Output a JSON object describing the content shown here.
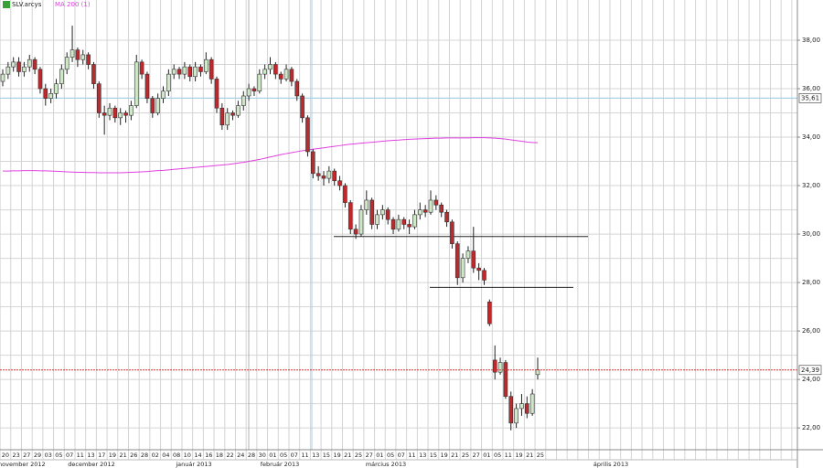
{
  "chart_data": {
    "type": "candlestick",
    "symbol": "SLV.arcys",
    "indicator": "MA 200 (1)",
    "categories": [
      "20",
      null,
      "23",
      null,
      "27",
      null,
      "29",
      null,
      "03",
      null,
      "05",
      null,
      "07",
      null,
      "11",
      null,
      "13",
      null,
      "17",
      null,
      "19",
      null,
      "21",
      null,
      "26",
      null,
      "28",
      null,
      "02",
      null,
      "04",
      null,
      "08",
      null,
      "10",
      null,
      "14",
      null,
      "16",
      null,
      "18",
      null,
      "22",
      null,
      "24",
      null,
      "28",
      null,
      "30",
      null,
      "01",
      null,
      "05",
      null,
      "07",
      null,
      "11",
      null,
      "13",
      null,
      "15",
      null,
      "19",
      null,
      "21",
      null,
      "25",
      null,
      "27",
      null,
      "01",
      null,
      "05",
      null,
      "07",
      null,
      "11",
      null,
      "13",
      null,
      "15",
      null,
      "19",
      null,
      "21",
      null,
      "25",
      null,
      "27",
      null,
      "01",
      null,
      "05",
      null,
      "11",
      null,
      "19",
      null,
      "21",
      null,
      "25"
    ],
    "month_labels": [
      "november 2012",
      "december 2012",
      "január 2013",
      "február 2013",
      "március 2013",
      "április 2013"
    ],
    "open": [
      36.3,
      36.6,
      36.9,
      37.1,
      36.7,
      36.9,
      37.2,
      36.8,
      36.0,
      35.6,
      35.8,
      36.2,
      36.8,
      37.3,
      37.6,
      37.2,
      37.4,
      37.0,
      36.2,
      35.0,
      34.9,
      35.2,
      34.8,
      35.0,
      34.9,
      35.3,
      37.1,
      36.6,
      35.6,
      35.0,
      35.6,
      35.9,
      36.6,
      36.8,
      36.6,
      36.9,
      36.5,
      36.9,
      36.7,
      37.2,
      36.4,
      35.2,
      34.5,
      35.0,
      34.9,
      35.3,
      35.7,
      36.0,
      35.9,
      36.6,
      36.8,
      37.0,
      36.6,
      36.4,
      36.8,
      36.3,
      35.7,
      34.8,
      33.4,
      32.5,
      32.4,
      32.3,
      32.6,
      32.2,
      32.0,
      31.3,
      30.2,
      30.0,
      31.0,
      31.4,
      30.4,
      30.8,
      31.0,
      30.6,
      30.2,
      30.6,
      30.4,
      30.3,
      30.8,
      31.0,
      30.9,
      31.4,
      31.2,
      30.9,
      30.5,
      29.6,
      28.2,
      29.0,
      29.3,
      28.6,
      28.5,
      27.2,
      24.8,
      24.3,
      24.7,
      23.3,
      22.2,
      22.8,
      23.0,
      22.6,
      24.2
    ],
    "high": [
      36.8,
      37.1,
      37.3,
      37.3,
      37.1,
      37.4,
      37.3,
      36.9,
      36.2,
      36.0,
      36.4,
      37.0,
      37.5,
      38.6,
      37.7,
      37.6,
      37.5,
      37.1,
      36.3,
      35.3,
      35.4,
      35.3,
      35.2,
      35.1,
      35.5,
      37.4,
      37.2,
      36.7,
      35.7,
      35.8,
      36.1,
      36.8,
      37.0,
      36.9,
      37.1,
      37.0,
      37.1,
      37.0,
      37.5,
      37.3,
      36.5,
      35.4,
      35.2,
      35.1,
      35.5,
      35.9,
      36.2,
      36.1,
      36.8,
      37.0,
      37.3,
      37.1,
      36.7,
      37.0,
      36.9,
      36.4,
      35.8,
      34.9,
      33.5,
      32.8,
      32.6,
      32.8,
      32.7,
      32.4,
      32.1,
      31.4,
      30.4,
      31.2,
      31.8,
      31.5,
      31.0,
      31.2,
      31.1,
      30.7,
      30.8,
      30.7,
      30.6,
      31.0,
      31.3,
      31.2,
      31.8,
      31.6,
      31.3,
      31.0,
      30.6,
      29.7,
      29.2,
      29.5,
      30.3,
      28.8,
      28.6,
      27.3,
      25.4,
      24.9,
      24.8,
      23.5,
      23.0,
      23.4,
      23.3,
      23.6,
      24.9
    ],
    "low": [
      36.1,
      36.4,
      36.7,
      36.5,
      36.5,
      36.7,
      36.6,
      35.8,
      35.3,
      35.4,
      35.6,
      36.0,
      36.6,
      37.1,
      36.9,
      37.0,
      36.8,
      36.0,
      34.8,
      34.1,
      34.7,
      34.6,
      34.5,
      34.6,
      34.7,
      35.2,
      36.4,
      35.4,
      34.8,
      34.9,
      35.4,
      35.7,
      36.4,
      36.4,
      36.4,
      36.3,
      36.3,
      36.5,
      36.6,
      36.2,
      35.0,
      34.3,
      34.3,
      34.7,
      34.8,
      35.1,
      35.5,
      35.7,
      35.8,
      36.4,
      36.6,
      36.4,
      36.2,
      36.3,
      36.1,
      35.5,
      34.6,
      33.2,
      32.3,
      32.2,
      32.0,
      32.1,
      32.0,
      31.8,
      31.1,
      30.0,
      29.8,
      29.9,
      30.8,
      30.2,
      30.2,
      30.6,
      30.4,
      30.0,
      30.1,
      30.2,
      30.0,
      30.2,
      30.6,
      30.7,
      30.8,
      31.0,
      30.7,
      30.3,
      29.4,
      27.9,
      28.0,
      28.8,
      28.4,
      28.1,
      27.9,
      26.2,
      24.0,
      24.2,
      23.2,
      21.9,
      22.0,
      22.5,
      22.4,
      22.5,
      24.0
    ],
    "close": [
      36.6,
      36.9,
      37.1,
      36.7,
      36.9,
      37.2,
      36.8,
      36.0,
      35.6,
      35.8,
      36.2,
      36.8,
      37.3,
      37.6,
      37.2,
      37.4,
      37.0,
      36.2,
      35.0,
      34.9,
      35.2,
      34.8,
      35.0,
      34.9,
      35.3,
      37.1,
      36.6,
      35.6,
      35.0,
      35.6,
      35.9,
      36.6,
      36.8,
      36.6,
      36.9,
      36.5,
      36.9,
      36.7,
      37.2,
      36.4,
      35.2,
      34.5,
      35.0,
      34.9,
      35.3,
      35.7,
      36.0,
      35.9,
      36.6,
      36.8,
      37.0,
      36.6,
      36.4,
      36.8,
      36.3,
      35.7,
      34.8,
      33.4,
      32.5,
      32.4,
      32.3,
      32.6,
      32.2,
      32.0,
      31.3,
      30.2,
      30.0,
      31.0,
      31.4,
      30.4,
      30.8,
      31.0,
      30.6,
      30.2,
      30.6,
      30.4,
      30.3,
      30.8,
      31.0,
      30.9,
      31.4,
      31.2,
      30.9,
      30.5,
      29.6,
      28.2,
      29.0,
      29.3,
      28.6,
      28.5,
      28.1,
      26.3,
      24.3,
      24.7,
      23.3,
      22.2,
      22.8,
      23.0,
      22.6,
      23.4,
      24.4
    ],
    "ma200": [
      32.6,
      32.6,
      32.61,
      32.61,
      32.62,
      32.62,
      32.62,
      32.61,
      32.61,
      32.6,
      32.59,
      32.58,
      32.57,
      32.56,
      32.55,
      32.55,
      32.54,
      32.54,
      32.53,
      32.53,
      32.53,
      32.53,
      32.53,
      32.54,
      32.55,
      32.56,
      32.57,
      32.58,
      32.6,
      32.62,
      32.63,
      32.65,
      32.67,
      32.69,
      32.71,
      32.73,
      32.75,
      32.77,
      32.79,
      32.81,
      32.83,
      32.85,
      32.87,
      32.9,
      32.93,
      32.96,
      33.0,
      33.04,
      33.08,
      33.13,
      33.18,
      33.23,
      33.28,
      33.32,
      33.36,
      33.4,
      33.44,
      33.47,
      33.5,
      33.53,
      33.56,
      33.59,
      33.62,
      33.65,
      33.68,
      33.71,
      33.73,
      33.75,
      33.77,
      33.79,
      33.81,
      33.83,
      33.85,
      33.87,
      33.88,
      33.9,
      33.91,
      33.92,
      33.93,
      33.94,
      33.95,
      33.96,
      33.96,
      33.97,
      33.97,
      33.97,
      33.97,
      33.97,
      33.98,
      33.98,
      33.98,
      33.97,
      33.96,
      33.94,
      33.92,
      33.89,
      33.86,
      33.83,
      33.8,
      33.78,
      33.77
    ],
    "ma_color": "#e040e0",
    "up_color": "#cfe8c8",
    "down_color": "#c0282c",
    "ylim": [
      21.1,
      39.66
    ],
    "yticks": [
      {
        "value": 22,
        "label": "22,00"
      },
      {
        "value": 24,
        "label": "24,00"
      },
      {
        "value": 26,
        "label": "26,00"
      },
      {
        "value": 28,
        "label": "28,00"
      },
      {
        "value": 30,
        "label": "30,00"
      },
      {
        "value": 32,
        "label": "32,00"
      },
      {
        "value": 34,
        "label": "34,00"
      },
      {
        "value": 36,
        "label": "36,00"
      },
      {
        "value": 38,
        "label": "38,00"
      }
    ],
    "reference_line": {
      "value": 35.61,
      "label": "35,61",
      "color": "#a8d0e6"
    },
    "last_price": {
      "value": 24.39,
      "label": "24,39",
      "color": "#e03030"
    },
    "levels": [
      29.9,
      27.8
    ],
    "grid": true
  }
}
